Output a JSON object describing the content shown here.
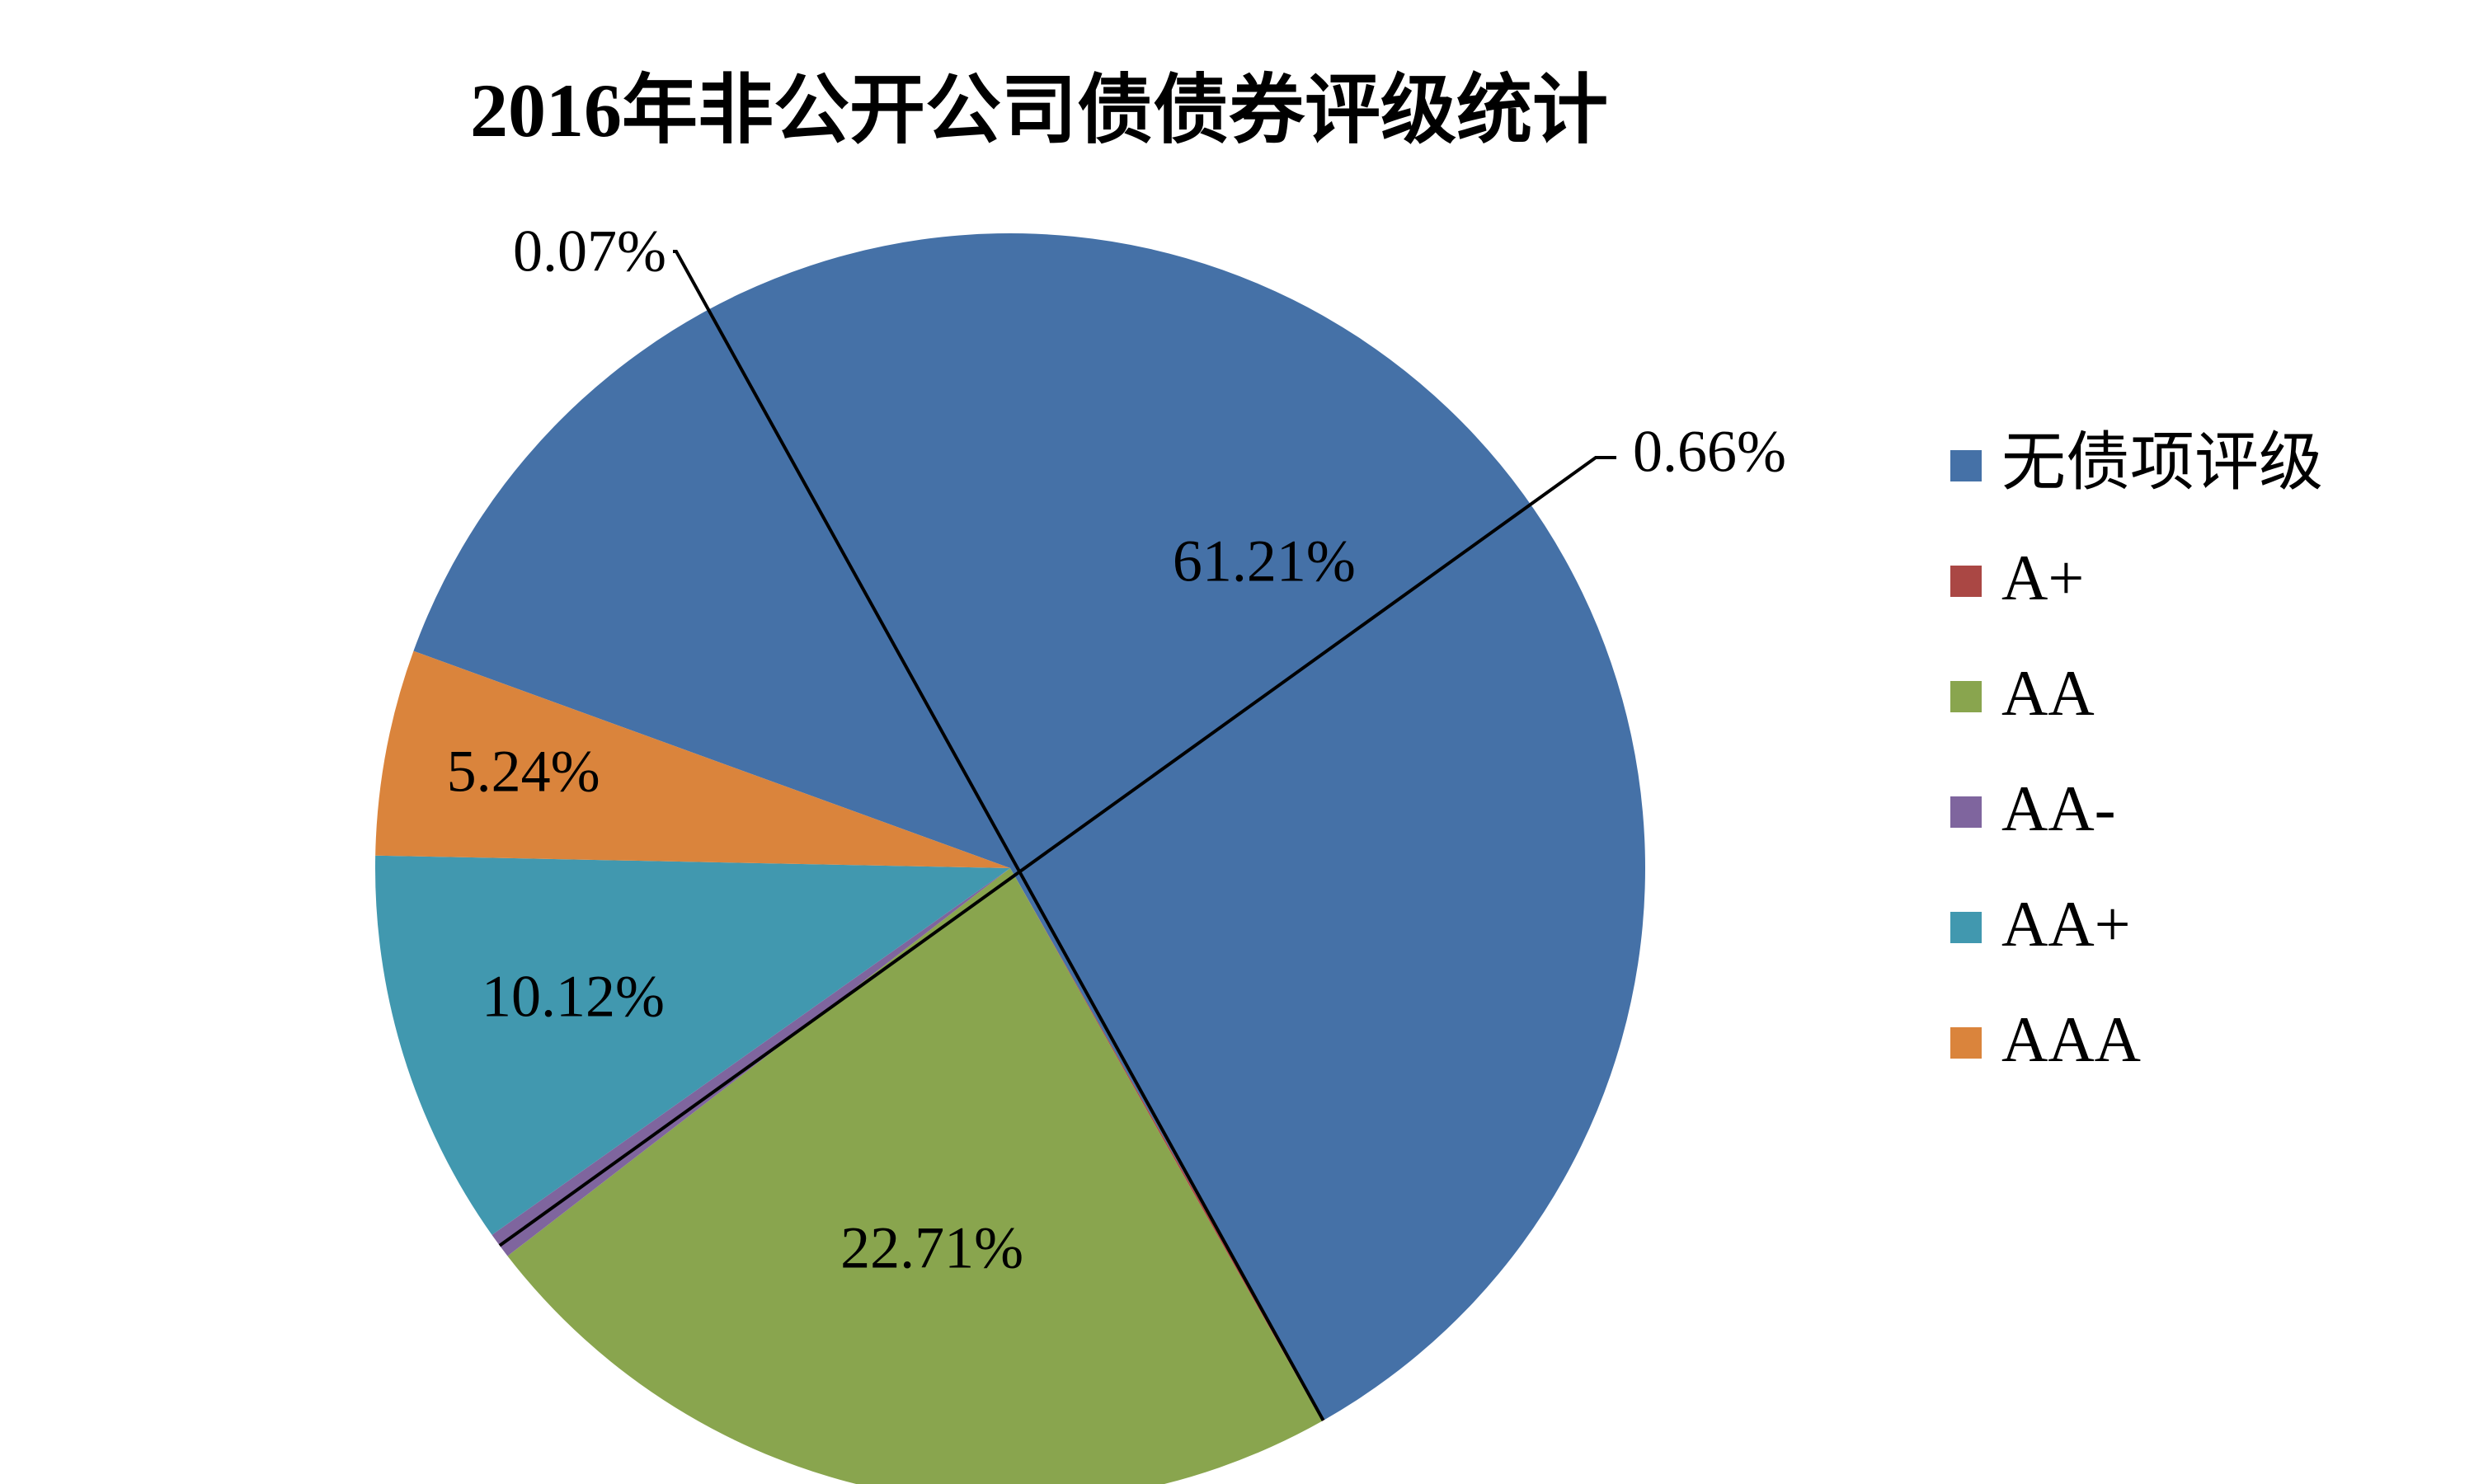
{
  "chart_data": {
    "type": "pie",
    "title": "2016年非公开公司债债券评级统计",
    "legend_position": "right",
    "categories": [
      "无债项评级",
      "A+",
      "AA",
      "AA-",
      "AA+",
      "AAA"
    ],
    "values": [
      61.21,
      0.07,
      22.71,
      0.66,
      10.12,
      5.24
    ],
    "data_labels": [
      "61.21%",
      "0.07%",
      "22.71%",
      "0.66%",
      "10.12%",
      "5.24%"
    ],
    "colors": [
      "#4571A7",
      "#AA4744",
      "#89A54E",
      "#7F659E",
      "#4198AF",
      "#DA843C"
    ]
  }
}
